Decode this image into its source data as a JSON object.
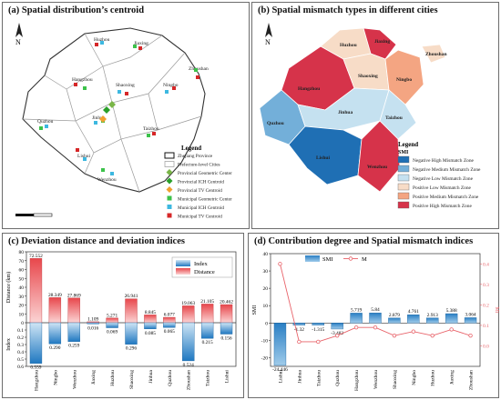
{
  "panels": {
    "a": {
      "title": "(a) Spatial distribution’s centroid"
    },
    "b": {
      "title": "(b) Spatial mismatch types in different cities"
    },
    "c": {
      "title": "(c) Deviation distance and deviation indices"
    },
    "d": {
      "title": "(d) Contribution degree and Spatial mismatch indices"
    }
  },
  "map_a": {
    "north": "N",
    "cities": [
      "Huzhou",
      "Jiaxing",
      "Hangzhou",
      "Shaoxing",
      "Ningbo",
      "Zhoushan",
      "Quzhou",
      "Jinhua",
      "Taizhou",
      "Lishui",
      "Wenzhou"
    ],
    "legend_title": "Legend",
    "legend_items": [
      {
        "label": "Zhejiang Province",
        "symbol": "box-black"
      },
      {
        "label": "Prefecture-level Cities",
        "symbol": "box-gray"
      },
      {
        "label": "Provincial Geometric Center",
        "symbol": "diamond",
        "color": "#7ab648"
      },
      {
        "label": "Provincial ICH Centroid",
        "symbol": "diamond",
        "color": "#2aa02a"
      },
      {
        "label": "Provincial TV Centroid",
        "symbol": "diamond",
        "color": "#f0a030"
      },
      {
        "label": "Municipal Geometric Center",
        "symbol": "square",
        "color": "#3cc24a"
      },
      {
        "label": "Municipal ICH Centroid",
        "symbol": "square",
        "color": "#3db8e0"
      },
      {
        "label": "Municipal TV Centroid",
        "symbol": "square",
        "color": "#d62728"
      }
    ]
  },
  "map_b": {
    "north": "N",
    "cities": [
      "Huzhou",
      "Jiaxing",
      "Hangzhou",
      "Shaoxing",
      "Ningbo",
      "Zhoushan",
      "Quzhou",
      "Jinhua",
      "Taizhou",
      "Lishui",
      "Wenzhou"
    ],
    "legend_title": "Legend",
    "legend_subtitle": "SMI",
    "legend_items": [
      {
        "label": "Negative High Mismatch Zone",
        "color": "#1f6fb4"
      },
      {
        "label": "Negative Medium Mismatch Zone",
        "color": "#73afd9"
      },
      {
        "label": "Negative Low Mismatch Zone",
        "color": "#c5e1f0"
      },
      {
        "label": "Positive Low Mismatch Zone",
        "color": "#f7dcc7"
      },
      {
        "label": "Positive Medium Mismatch Zone",
        "color": "#f4a582"
      },
      {
        "label": "Positive High Mismatch Zone",
        "color": "#d6334a"
      }
    ],
    "city_colors": {
      "Huzhou": "#f7dcc7",
      "Jiaxing": "#d6334a",
      "Hangzhou": "#d6334a",
      "Shaoxing": "#f7dcc7",
      "Ningbo": "#f4a582",
      "Zhoushan": "#f7dcc7",
      "Quzhou": "#73afd9",
      "Jinhua": "#c5e1f0",
      "Taizhou": "#c5e1f0",
      "Lishui": "#1f6fb4",
      "Wenzhou": "#d6334a"
    }
  },
  "chart_data": [
    {
      "type": "bar",
      "title": "(c) Deviation distance and deviation indices",
      "categories": [
        "Hangzhou",
        "Ningbo",
        "Wenzhou",
        "Jiaxing",
        "Huzhou",
        "Shaoxing",
        "Jinhua",
        "Quzhou",
        "Zhoushan",
        "Taizhou",
        "Lishui"
      ],
      "series": [
        {
          "name": "Distance",
          "color": "#f06060",
          "values": [
            72.552,
            28.349,
            27.869,
            1.109,
            5.271,
            26.941,
            8.845,
            6.077,
            19.063,
            21.105,
            20.462
          ]
        },
        {
          "name": "Index",
          "color": "#2f86c8",
          "values": [
            0.559,
            0.29,
            0.259,
            0.016,
            0.069,
            0.296,
            0.085,
            0.065,
            0.524,
            0.215,
            0.156
          ]
        }
      ],
      "distance_ylabel": "Distance (km)",
      "index_ylabel": "Index",
      "distance_ylim": [
        0,
        80
      ],
      "distance_ticks": [
        0,
        10,
        20,
        30,
        40,
        50,
        60,
        70,
        80
      ],
      "index_ylim": [
        0,
        0.6
      ],
      "index_ticks": [
        0.0,
        0.1,
        0.2,
        0.3,
        0.4,
        0.5,
        0.6
      ],
      "legend": "top-right"
    },
    {
      "type": "bar",
      "title": "(d) Contribution degree and Spatial mismatch indices",
      "categories": [
        "Lishui",
        "Jinhua",
        "Taizhou",
        "Quzhou",
        "Hangzhou",
        "Wenzhou",
        "Shaoxing",
        "Ningbo",
        "Huzhou",
        "Jiaxing",
        "Zhoushan"
      ],
      "series": [
        {
          "name": "SMI",
          "type": "bar",
          "color": "#2f86c8",
          "values": [
            -24.446,
            -1.32,
            -1.315,
            -3.482,
            5.719,
            5.84,
            2.879,
            4.761,
            2.913,
            5.388,
            3.064
          ]
        },
        {
          "name": "M",
          "type": "line",
          "color": "#e8636a",
          "values": [
            0.4,
            0.02,
            0.02,
            0.05,
            0.09,
            0.09,
            0.05,
            0.07,
            0.05,
            0.08,
            0.05
          ]
        }
      ],
      "left_ylabel": "SMI",
      "right_ylabel": "Mi",
      "left_ylim": [
        -25,
        40
      ],
      "left_ticks": [
        -20,
        -10,
        0,
        10,
        20,
        30,
        40
      ],
      "right_ylim": [
        -0.1,
        0.45
      ],
      "right_ticks": [
        0.0,
        0.1,
        0.2,
        0.3,
        0.4
      ],
      "legend": "top"
    }
  ]
}
